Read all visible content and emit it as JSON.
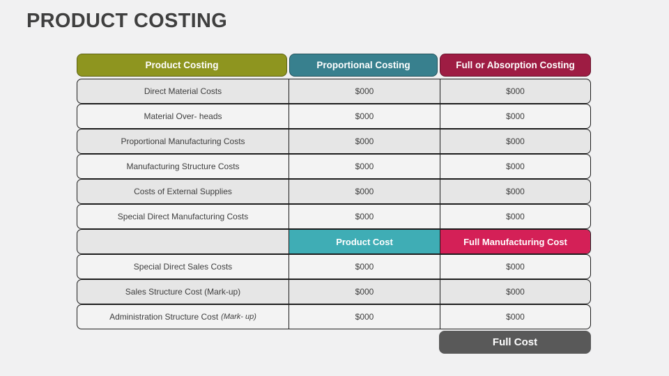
{
  "slide": {
    "title": "PRODUCT COSTING"
  },
  "colors": {
    "page_background": "#f1f1f2",
    "header_product_costing": "#8e951f",
    "header_proportional_costing": "#38808e",
    "header_full_absorption": "#9e1c43",
    "band_product_cost": "#3fadb5",
    "band_full_manufacturing": "#d42057",
    "footer_full_cost": "#595959",
    "row_shade_dark": "#e6e6e6",
    "row_shade_light": "#f3f3f3"
  },
  "table": {
    "headers": [
      "Product Costing",
      "Proportional Costing",
      "Full or Absorption Costing"
    ],
    "rows": [
      {
        "label": "Direct Material Costs",
        "values": [
          "$000",
          "$000"
        ]
      },
      {
        "label": "Material Over- heads",
        "values": [
          "$000",
          "$000"
        ]
      },
      {
        "label": "Proportional Manufacturing Costs",
        "values": [
          "$000",
          "$000"
        ]
      },
      {
        "label": "Manufacturing Structure Costs",
        "values": [
          "$000",
          "$000"
        ]
      },
      {
        "label": "Costs of External Supplies",
        "values": [
          "$000",
          "$000"
        ]
      },
      {
        "label": "Special Direct Manufacturing Costs",
        "values": [
          "$000",
          "$000"
        ]
      }
    ],
    "band": {
      "col2": "Product Cost",
      "col3": "Full Manufacturing Cost"
    },
    "rows_after": [
      {
        "label": "Special Direct Sales Costs",
        "values": [
          "$000",
          "$000"
        ]
      },
      {
        "label": "Sales Structure Cost (Mark-up)",
        "values": [
          "$000",
          "$000"
        ]
      },
      {
        "label": "Administration Structure Cost",
        "suffix": "(Mark- up)",
        "values": [
          "$000",
          "$000"
        ]
      }
    ],
    "footer": "Full Cost"
  }
}
